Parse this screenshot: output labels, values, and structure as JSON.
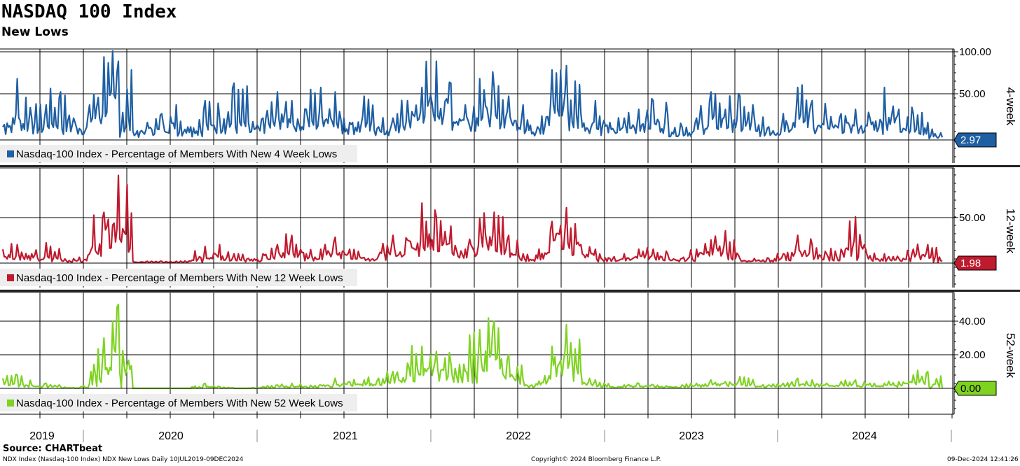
{
  "header": {
    "title": "NASDAQ 100 Index",
    "subtitle": "New Lows"
  },
  "footer": {
    "source": "Source: CHARTbeat",
    "left": "NDX Index (Nasdaq-100 Index) NDX New Lows  Daily 10JUL2019-09DEC2024",
    "center": "Copyright© 2024 Bloomberg Finance L.P.",
    "right": "09-Dec-2024 12:41:26"
  },
  "colors": {
    "panel1": "#1f5fa3",
    "panel2": "#c01a2e",
    "panel3": "#7ed321",
    "legend_bg": "#eeeeee"
  },
  "chart_data": [
    {
      "type": "line",
      "panel_label": "4-week",
      "series": [
        {
          "name": "Nasdaq-100 Index - Percentage of Members With New 4 Week Lows",
          "last_value": "2.97",
          "x": [
            "2019-07",
            "2019-08",
            "2019-09",
            "2019-10",
            "2019-11",
            "2019-12",
            "2020-01",
            "2020-02",
            "2020-03",
            "2020-04",
            "2020-05",
            "2020-06",
            "2020-07",
            "2020-08",
            "2020-09",
            "2020-10",
            "2020-11",
            "2020-12",
            "2021-01",
            "2021-02",
            "2021-03",
            "2021-04",
            "2021-05",
            "2021-06",
            "2021-07",
            "2021-08",
            "2021-09",
            "2021-10",
            "2021-11",
            "2021-12",
            "2022-01",
            "2022-02",
            "2022-03",
            "2022-04",
            "2022-05",
            "2022-06",
            "2022-07",
            "2022-08",
            "2022-09",
            "2022-10",
            "2022-11",
            "2022-12",
            "2023-01",
            "2023-02",
            "2023-03",
            "2023-04",
            "2023-05",
            "2023-06",
            "2023-07",
            "2023-08",
            "2023-09",
            "2023-10",
            "2023-11",
            "2023-12",
            "2024-01",
            "2024-02",
            "2024-03",
            "2024-04",
            "2024-05",
            "2024-06",
            "2024-07",
            "2024-08",
            "2024-09",
            "2024-10",
            "2024-11",
            "2024-12"
          ],
          "values": [
            15,
            70,
            25,
            40,
            55,
            20,
            40,
            95,
            90,
            10,
            20,
            30,
            40,
            15,
            45,
            25,
            65,
            20,
            25,
            55,
            45,
            35,
            60,
            55,
            20,
            50,
            15,
            25,
            45,
            60,
            90,
            65,
            40,
            70,
            60,
            50,
            40,
            15,
            80,
            85,
            30,
            45,
            20,
            25,
            35,
            45,
            30,
            15,
            25,
            55,
            35,
            50,
            25,
            15,
            30,
            60,
            45,
            25,
            30,
            35,
            25,
            60,
            35,
            30,
            20,
            3
          ]
        }
      ],
      "ylim": [
        0,
        100
      ],
      "yticks": [
        "100.00",
        "50.00"
      ]
    },
    {
      "type": "line",
      "panel_label": "12-week",
      "series": [
        {
          "name": "Nasdaq-100 Index - Percentage of Members With New 12 Week Lows",
          "last_value": "1.98",
          "x": [
            "2019-07",
            "2019-08",
            "2019-09",
            "2019-10",
            "2019-11",
            "2019-12",
            "2020-01",
            "2020-02",
            "2020-03",
            "2020-04",
            "2020-05",
            "2020-06",
            "2020-07",
            "2020-08",
            "2020-09",
            "2020-10",
            "2020-11",
            "2020-12",
            "2021-01",
            "2021-02",
            "2021-03",
            "2021-04",
            "2021-05",
            "2021-06",
            "2021-07",
            "2021-08",
            "2021-09",
            "2021-10",
            "2021-11",
            "2021-12",
            "2022-01",
            "2022-02",
            "2022-03",
            "2022-04",
            "2022-05",
            "2022-06",
            "2022-07",
            "2022-08",
            "2022-09",
            "2022-10",
            "2022-11",
            "2022-12",
            "2023-01",
            "2023-02",
            "2023-03",
            "2023-04",
            "2023-05",
            "2023-06",
            "2023-07",
            "2023-08",
            "2023-09",
            "2023-10",
            "2023-11",
            "2023-12",
            "2024-01",
            "2024-02",
            "2024-03",
            "2024-04",
            "2024-05",
            "2024-06",
            "2024-07",
            "2024-08",
            "2024-09",
            "2024-10",
            "2024-11",
            "2024-12"
          ],
          "values": [
            15,
            20,
            10,
            22,
            5,
            3,
            10,
            55,
            95,
            2,
            2,
            2,
            2,
            2,
            18,
            20,
            10,
            5,
            10,
            20,
            30,
            10,
            15,
            28,
            15,
            6,
            8,
            30,
            25,
            65,
            50,
            40,
            15,
            48,
            55,
            30,
            10,
            5,
            45,
            60,
            20,
            15,
            5,
            10,
            15,
            15,
            10,
            5,
            15,
            25,
            35,
            5,
            5,
            5,
            10,
            30,
            20,
            10,
            15,
            50,
            8,
            10,
            5,
            15,
            20,
            2
          ]
        }
      ],
      "ylim": [
        0,
        100
      ],
      "yticks": [
        "50.00"
      ]
    },
    {
      "type": "line",
      "panel_label": "52-week",
      "series": [
        {
          "name": "Nasdaq-100 Index - Percentage of Members With New 52 Week Lows",
          "last_value": "0.00",
          "x": [
            "2019-07",
            "2019-08",
            "2019-09",
            "2019-10",
            "2019-11",
            "2019-12",
            "2020-01",
            "2020-02",
            "2020-03",
            "2020-04",
            "2020-05",
            "2020-06",
            "2020-07",
            "2020-08",
            "2020-09",
            "2020-10",
            "2020-11",
            "2020-12",
            "2021-01",
            "2021-02",
            "2021-03",
            "2021-04",
            "2021-05",
            "2021-06",
            "2021-07",
            "2021-08",
            "2021-09",
            "2021-10",
            "2021-11",
            "2021-12",
            "2022-01",
            "2022-02",
            "2022-03",
            "2022-04",
            "2022-05",
            "2022-06",
            "2022-07",
            "2022-08",
            "2022-09",
            "2022-10",
            "2022-11",
            "2022-12",
            "2023-01",
            "2023-02",
            "2023-03",
            "2023-04",
            "2023-05",
            "2023-06",
            "2023-07",
            "2023-08",
            "2023-09",
            "2023-10",
            "2023-11",
            "2023-12",
            "2024-01",
            "2024-02",
            "2024-03",
            "2024-04",
            "2024-05",
            "2024-06",
            "2024-07",
            "2024-08",
            "2024-09",
            "2024-10",
            "2024-11",
            "2024-12"
          ],
          "values": [
            6,
            8,
            2,
            3,
            1,
            0,
            3,
            30,
            50,
            0,
            0,
            0,
            0,
            0,
            3,
            1,
            0,
            0,
            1,
            2,
            3,
            1,
            2,
            6,
            4,
            5,
            6,
            10,
            15,
            25,
            22,
            15,
            10,
            35,
            40,
            20,
            5,
            2,
            25,
            38,
            10,
            5,
            1,
            2,
            3,
            2,
            1,
            2,
            3,
            5,
            4,
            7,
            2,
            2,
            3,
            6,
            5,
            3,
            4,
            5,
            3,
            3,
            4,
            8,
            10,
            0
          ]
        }
      ],
      "ylim": [
        -10,
        55
      ],
      "yticks": [
        "40.00",
        "20.00",
        "0.00"
      ]
    }
  ],
  "x_axis": {
    "years": [
      "2019",
      "2020",
      "2021",
      "2022",
      "2023",
      "2024"
    ]
  }
}
